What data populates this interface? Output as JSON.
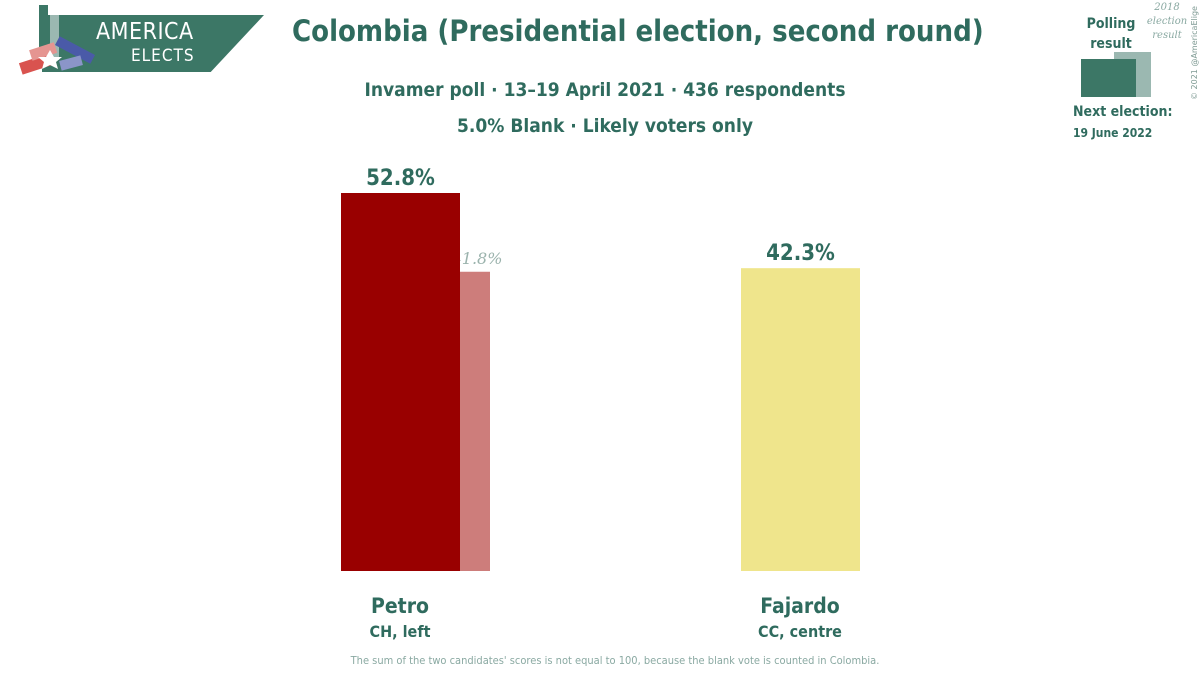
{
  "header": {
    "title": "Colombia (Presidential election, second round)",
    "subtitle": "Invamer poll · 13–19 April 2021 · 436 respondents",
    "subtitle2": "5.0% Blank · Likely voters only"
  },
  "logo": {
    "word1": "AMERICA",
    "word2": "ELECTS"
  },
  "legend": {
    "polling_label": "Polling result",
    "previous_label": "2018 election result",
    "next_election_label": "Next election:",
    "next_election_date": "19 June 2022",
    "copyright": "© 2021 @AmericaElige",
    "colors": {
      "current": "#3c7766",
      "previous": "#9bb8b1"
    }
  },
  "chart_data": {
    "type": "bar",
    "categories": [
      "Petro",
      "Fajardo"
    ],
    "parties": [
      "CH, left",
      "CC, centre"
    ],
    "series": [
      {
        "name": "Polling result",
        "values": [
          52.8,
          42.3
        ],
        "labels": [
          "52.8%",
          "42.3%"
        ],
        "colors": [
          "#990000",
          "#efe58c"
        ]
      },
      {
        "name": "2018 election result",
        "values": [
          41.8,
          null
        ],
        "labels": [
          "41.8%",
          ""
        ],
        "colors": [
          "#cd7d7b",
          null
        ]
      }
    ],
    "ylim": [
      0,
      55
    ],
    "grid": false
  },
  "footnote": "The sum of the two candidates' scores is not equal to 100, because the blank vote is counted in Colombia."
}
